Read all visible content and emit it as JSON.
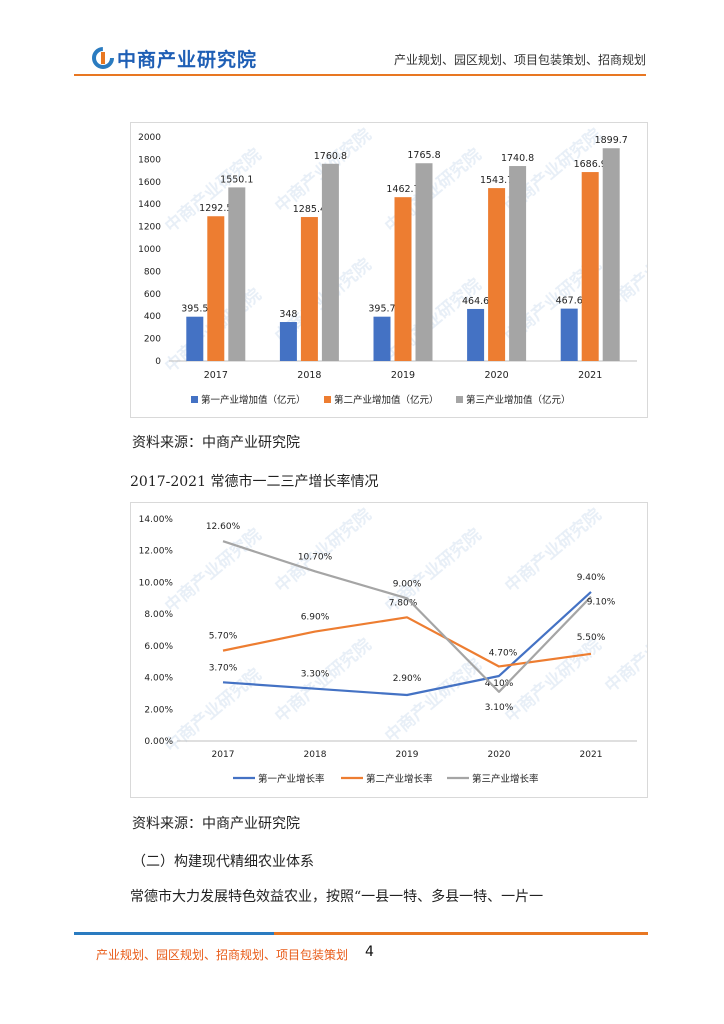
{
  "header": {
    "logo_text": "中商产业研究院",
    "right_text": "产业规划、园区规划、项目包装策划、招商规划"
  },
  "bar_source": "资料来源：中商产业研究院",
  "line_title": "2017-2021 常德市一二三产增长率情况",
  "line_source": "资料来源：中商产业研究院",
  "section_heading": "（二）构建现代精细农业体系",
  "body_text": "常德市大力发展特色效益农业，按照“一县一特、多县一特、一片一",
  "watermark_text": "中商产业研究院",
  "footer": {
    "text": "产业规划、园区规划、招商规划、项目包装策划",
    "page": "4"
  },
  "colors": {
    "blue": "#4472c4",
    "orange": "#ed7d31",
    "gray": "#a5a5a5",
    "accent": "#e87722",
    "brand": "#1f5fb5"
  },
  "chart_data": [
    {
      "type": "bar",
      "categories": [
        "2017",
        "2018",
        "2019",
        "2020",
        "2021"
      ],
      "series": [
        {
          "name": "第一产业增加值（亿元）",
          "values": [
            395.5,
            348,
            395.7,
            464.6,
            467.6
          ],
          "labels": [
            "395.5",
            "348",
            "395.7",
            "464.6",
            "467.6"
          ]
        },
        {
          "name": "第二产业增加值（亿元）",
          "values": [
            1292.5,
            1285.4,
            1462.7,
            1543.7,
            1686.9
          ],
          "labels": [
            "1292.5",
            "1285.4",
            "1462.7",
            "1543.7",
            "1686.9"
          ]
        },
        {
          "name": "第三产业增加值（亿元）",
          "values": [
            1550.1,
            1760.8,
            1765.8,
            1740.8,
            1899.7
          ],
          "labels": [
            "1550.1",
            "1760.8",
            "1765.8",
            "1740.8",
            "1899.7"
          ]
        }
      ],
      "ylim": [
        0,
        2000
      ],
      "yticks": [
        "0",
        "200",
        "400",
        "600",
        "800",
        "1000",
        "1200",
        "1400",
        "1600",
        "1800",
        "2000"
      ],
      "legend": "bottom"
    },
    {
      "type": "line",
      "categories": [
        "2017",
        "2018",
        "2019",
        "2020",
        "2021"
      ],
      "series": [
        {
          "name": "第一产业增长率",
          "values": [
            3.7,
            3.3,
            2.9,
            4.1,
            9.4
          ],
          "labels": [
            "3.70%",
            "3.30%",
            "2.90%",
            "4.10%",
            "9.40%"
          ]
        },
        {
          "name": "第二产业增长率",
          "values": [
            5.7,
            6.9,
            7.8,
            4.7,
            5.5
          ],
          "labels": [
            "5.70%",
            "6.90%",
            "7.80%",
            "4.70%",
            "5.50%"
          ]
        },
        {
          "name": "第三产业增长率",
          "values": [
            12.6,
            10.7,
            9.0,
            3.1,
            9.1
          ],
          "labels": [
            "12.60%",
            "10.70%",
            "9.00%",
            "3.10%",
            "9.10%"
          ]
        }
      ],
      "ylim": [
        0,
        14
      ],
      "yticks": [
        "0.00%",
        "2.00%",
        "4.00%",
        "6.00%",
        "8.00%",
        "10.00%",
        "12.00%",
        "14.00%"
      ],
      "legend": "bottom"
    }
  ]
}
